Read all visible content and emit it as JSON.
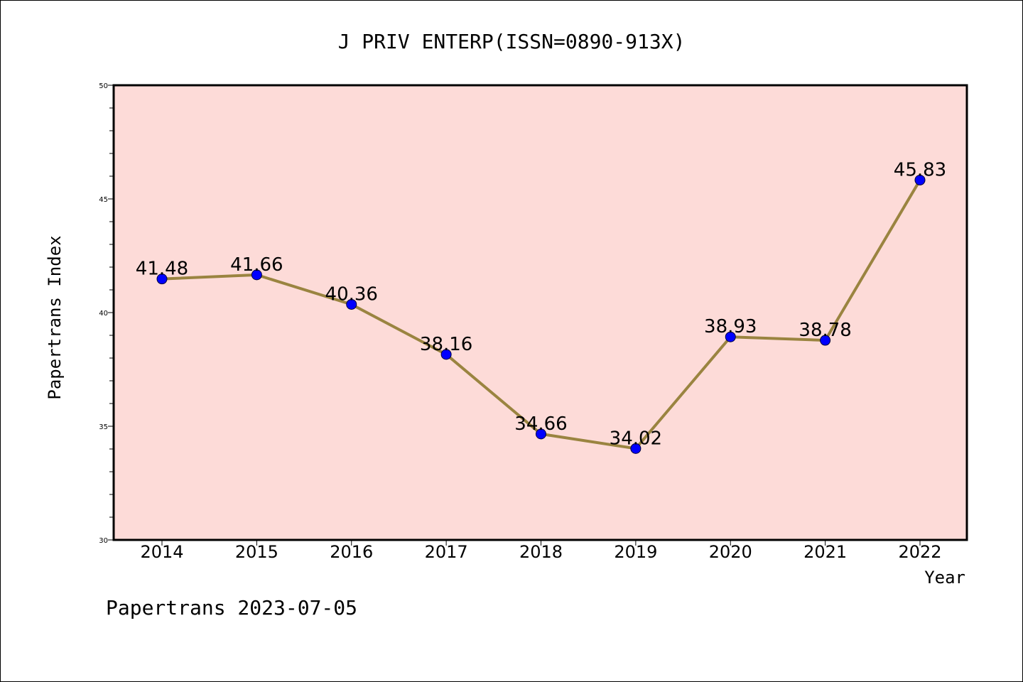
{
  "chart_data": {
    "type": "line",
    "title": "J PRIV ENTERP(ISSN=0890-913X)",
    "xlabel": "Year",
    "ylabel": "Papertrans Index",
    "categories": [
      "2014",
      "2015",
      "2016",
      "2017",
      "2018",
      "2019",
      "2020",
      "2021",
      "2022"
    ],
    "values": [
      41.48,
      41.66,
      40.36,
      38.16,
      34.66,
      34.02,
      38.93,
      38.78,
      45.83
    ],
    "data_labels": [
      "41.48",
      "41.66",
      "40.36",
      "38.16",
      "34.66",
      "34.02",
      "38.93",
      "38.78",
      "45.83"
    ],
    "ylim": [
      30,
      50
    ],
    "yticks": [
      30,
      35,
      40,
      45,
      50
    ],
    "ytick_labels": [
      "30",
      "35",
      "40",
      "45",
      "50"
    ],
    "grid": false,
    "legend": "none",
    "colors": {
      "plot_background": "#fddbd8",
      "line": "#9a8440",
      "marker": "#0000ff"
    }
  },
  "footer": {
    "text": "Papertrans 2023-07-05"
  }
}
